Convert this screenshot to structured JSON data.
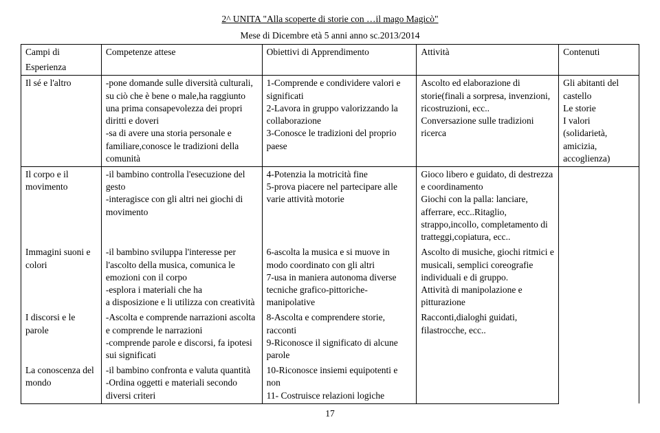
{
  "title": "2^ UNITA \"Alla scoperte di storie con …il mago Magicò\"",
  "subtitle": "Mese di Dicembre    età 5 anni        anno sc.2013/2014",
  "headers": {
    "c1a": "Campi di",
    "c1b": "Esperienza",
    "c2": "Competenze attese",
    "c3": "Obiettivi di Apprendimento",
    "c4": "Attività",
    "c5": "Contenuti"
  },
  "r1": {
    "c1": "Il sé e l'altro",
    "c2": "-pone domande sulle diversità culturali, su ciò che è bene o male,ha raggiunto una prima consapevolezza dei propri diritti e doveri\n-sa di avere una storia personale e familiare,conosce le tradizioni della comunità",
    "c3": "1-Comprende e condividere valori e significati\n2-Lavora in gruppo valorizzando la collaborazione\n3-Conosce  le tradizioni del proprio paese",
    "c4": "Ascolto ed elaborazione di storie(finali a sorpresa, invenzioni, ricostruzioni, ecc..\nConversazione sulle tradizioni ricerca",
    "c5": "Gli abitanti del castello\nLe storie\nI valori (solidarietà, amicizia, accoglienza)"
  },
  "r2": {
    "c1": "Il corpo e il movimento",
    "c2": "-il bambino controlla l'esecuzione del gesto\n-interagisce con gli altri nei giochi di movimento",
    "c3": "4-Potenzia la motricità fine\n5-prova piacere nel partecipare alle varie attività motorie",
    "c4": " Gioco libero e guidato, di destrezza e coordinamento\nGiochi con la palla: lanciare, afferrare, ecc..Ritaglio, strappo,incollo, completamento di tratteggi,copiatura, ecc.."
  },
  "r3": {
    "c1": "Immagini suoni e colori",
    "c2": "-il bambino sviluppa l'interesse per l'ascolto della musica, comunica le emozioni con il corpo\n-esplora i materiali che ha\na disposizione e li utilizza con creatività",
    "c3": "6-ascolta la musica e si muove  in modo coordinato con gli altri\n7-usa in maniera autonoma diverse tecniche grafico-pittoriche-manipolative",
    "c4": "Ascolto di musiche, giochi ritmici e musicali,  semplici coreografie individuali e di gruppo.\nAttività di manipolazione e pitturazione"
  },
  "r4": {
    "c1": "I discorsi e le parole",
    "c2": "-Ascolta e comprende narrazioni ascolta e comprende le narrazioni\n-comprende parole e discorsi, fa ipotesi sui significati",
    "c3": "8-Ascolta e comprendere storie, racconti\n9-Riconosce il significato di alcune parole",
    "c4": "Racconti,dialoghi guidati, filastrocche, ecc.."
  },
  "r5": {
    "c1": "La conoscenza del mondo",
    "c2": "-il  bambino confronta e valuta quantità\n-Ordina oggetti e materiali secondo diversi criteri",
    "c3": "10-Riconosce insiemi equipotenti e non\n11- Costruisce relazioni logiche"
  },
  "pageNum": "17"
}
